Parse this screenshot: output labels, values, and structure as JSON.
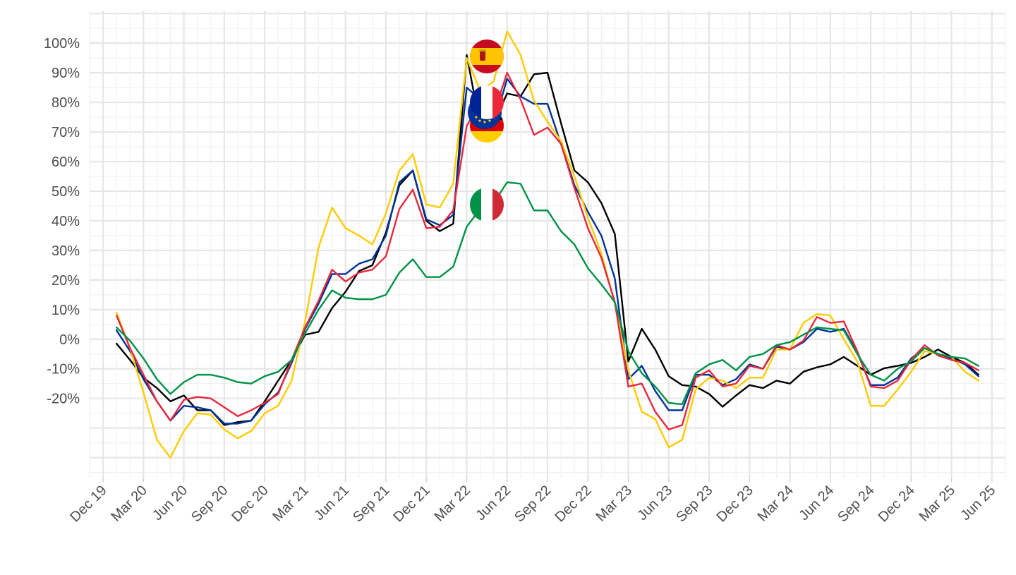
{
  "chart_data": {
    "type": "line",
    "title": "",
    "xlabel": "",
    "ylabel": "",
    "y_tick_labels": [
      "-20%",
      "-10%",
      "0%",
      "10%",
      "20%",
      "30%",
      "40%",
      "50%",
      "60%",
      "70%",
      "80%",
      "90%",
      "100%"
    ],
    "y_ticks": [
      -20,
      -10,
      0,
      10,
      20,
      30,
      40,
      50,
      60,
      70,
      80,
      90,
      100
    ],
    "x_tick_labels": [
      "Dec 19",
      "Mar 20",
      "Jun 20",
      "Sep 20",
      "Dec 20",
      "Mar 21",
      "Jun 21",
      "Sep 21",
      "Dec 21",
      "Mar 22",
      "Jun 22",
      "Sep 22",
      "Dec 22",
      "Mar 23",
      "Jun 23",
      "Sep 23",
      "Dec 23",
      "Mar 24",
      "Jun 24",
      "Sep 24",
      "Dec 24",
      "Mar 25",
      "Jun 25"
    ],
    "x_ticks": [
      "2019-12",
      "2020-03",
      "2020-06",
      "2020-09",
      "2020-12",
      "2021-03",
      "2021-06",
      "2021-09",
      "2021-12",
      "2022-03",
      "2022-06",
      "2022-09",
      "2022-12",
      "2023-03",
      "2023-06",
      "2023-09",
      "2023-12",
      "2024-03",
      "2024-06",
      "2024-09",
      "2024-12",
      "2025-03",
      "2025-06"
    ],
    "x_range": [
      "2019-11",
      "2025-07"
    ],
    "y_range": [
      -47,
      111
    ],
    "grid": true,
    "legend": "flag icons at line ends",
    "series": [
      {
        "color": "#000000",
        "flag": "eu-flag-icon",
        "x": [
          "2020-01",
          "2020-02",
          "2020-03",
          "2020-04",
          "2020-05",
          "2020-06",
          "2020-07",
          "2020-08",
          "2020-09",
          "2020-10",
          "2020-11",
          "2020-12",
          "2021-01",
          "2021-02",
          "2021-03",
          "2021-04",
          "2021-05",
          "2021-06",
          "2021-07",
          "2021-08",
          "2021-09",
          "2021-10",
          "2021-11",
          "2021-12",
          "2022-01",
          "2022-02",
          "2022-03",
          "2022-04",
          "2022-05",
          "2022-06",
          "2022-07",
          "2022-08",
          "2022-09",
          "2022-10",
          "2022-11",
          "2022-12",
          "2023-01",
          "2023-02",
          "2023-03",
          "2023-04",
          "2023-05",
          "2023-06",
          "2023-07",
          "2023-08",
          "2023-09",
          "2023-10",
          "2023-11",
          "2023-12",
          "2024-01",
          "2024-02",
          "2024-03",
          "2024-04",
          "2024-05",
          "2024-06",
          "2024-07",
          "2024-08",
          "2024-09",
          "2024-10",
          "2024-11",
          "2024-12",
          "2025-01",
          "2025-02",
          "2025-03",
          "2025-04",
          "2025-05"
        ],
        "y": [
          -1.5,
          -7,
          -13,
          -16.5,
          -21,
          -19,
          -24,
          -24,
          -29,
          -28,
          -27.5,
          -21,
          -14,
          -7,
          1.5,
          2.5,
          10.5,
          16,
          23,
          25,
          36,
          52,
          57,
          40,
          36.5,
          39,
          96,
          72,
          73,
          83,
          82,
          89.5,
          90,
          73,
          57,
          53,
          46,
          35.5,
          -7.5,
          3.5,
          -3.5,
          -12.5,
          -15.5,
          -16,
          -18.5,
          -22.8,
          -19,
          -15.5,
          -16.5,
          -14,
          -15,
          -11,
          -9.5,
          -8.5,
          -6,
          -9,
          -12,
          -9.8,
          -9,
          -8,
          -6,
          -3.5,
          -6,
          -8,
          -12
        ]
      },
      {
        "color": "#003399",
        "flag": "france-flag-icon",
        "x": [
          "2020-01",
          "2020-02",
          "2020-03",
          "2020-04",
          "2020-05",
          "2020-06",
          "2020-07",
          "2020-08",
          "2020-09",
          "2020-10",
          "2020-11",
          "2020-12",
          "2021-01",
          "2021-02",
          "2021-03",
          "2021-04",
          "2021-05",
          "2021-06",
          "2021-07",
          "2021-08",
          "2021-09",
          "2021-10",
          "2021-11",
          "2021-12",
          "2022-01",
          "2022-02",
          "2022-03",
          "2022-04",
          "2022-05",
          "2022-06",
          "2022-07",
          "2022-08",
          "2022-09",
          "2022-10",
          "2022-11",
          "2022-12",
          "2023-01",
          "2023-02",
          "2023-03",
          "2023-04",
          "2023-05",
          "2023-06",
          "2023-07",
          "2023-08",
          "2023-09",
          "2023-10",
          "2023-11",
          "2023-12",
          "2024-01",
          "2024-02",
          "2024-03",
          "2024-04",
          "2024-05",
          "2024-06",
          "2024-07",
          "2024-08",
          "2024-09",
          "2024-10",
          "2024-11",
          "2024-12",
          "2025-01",
          "2025-02",
          "2025-03",
          "2025-04",
          "2025-05"
        ],
        "y": [
          3,
          -4,
          -13.5,
          -21,
          -27.5,
          -22.5,
          -23,
          -24,
          -28.5,
          -28.5,
          -27.5,
          -22,
          -18,
          -8,
          3.5,
          12,
          22,
          22,
          25.5,
          27,
          35,
          53,
          57,
          40.5,
          38.5,
          42,
          85,
          81,
          72,
          88,
          82,
          79.5,
          79.5,
          66,
          52,
          43,
          35,
          20.5,
          -13.5,
          -9,
          -17.5,
          -24,
          -24,
          -12,
          -12,
          -15.5,
          -13.5,
          -8.5,
          -10,
          -2.5,
          -3.5,
          -1,
          3.5,
          2.5,
          3.5,
          -4.5,
          -15.5,
          -15.5,
          -13,
          -6.5,
          -3,
          -5,
          -6.5,
          -8.5,
          -12.5
        ]
      },
      {
        "color": "#ffcc00",
        "flag": "spain-flag-icon",
        "x": [
          "2020-01",
          "2020-02",
          "2020-03",
          "2020-04",
          "2020-05",
          "2020-06",
          "2020-07",
          "2020-08",
          "2020-09",
          "2020-10",
          "2020-11",
          "2020-12",
          "2021-01",
          "2021-02",
          "2021-03",
          "2021-04",
          "2021-05",
          "2021-06",
          "2021-07",
          "2021-08",
          "2021-09",
          "2021-10",
          "2021-11",
          "2021-12",
          "2022-01",
          "2022-02",
          "2022-03",
          "2022-04",
          "2022-05",
          "2022-06",
          "2022-07",
          "2022-08",
          "2022-09",
          "2022-10",
          "2022-11",
          "2022-12",
          "2023-01",
          "2023-02",
          "2023-03",
          "2023-04",
          "2023-05",
          "2023-06",
          "2023-07",
          "2023-08",
          "2023-09",
          "2023-10",
          "2023-11",
          "2023-12",
          "2024-01",
          "2024-02",
          "2024-03",
          "2024-04",
          "2024-05",
          "2024-06",
          "2024-07",
          "2024-08",
          "2024-09",
          "2024-10",
          "2024-11",
          "2024-12",
          "2025-01",
          "2025-02",
          "2025-03",
          "2025-04",
          "2025-05"
        ],
        "y": [
          9,
          -3,
          -18,
          -34,
          -40,
          -31,
          -25,
          -25.5,
          -30.5,
          -33.5,
          -31,
          -25,
          -22.5,
          -14,
          6,
          31,
          44.5,
          37.5,
          35,
          32,
          42.5,
          57,
          62.5,
          45.5,
          44.5,
          52.5,
          95,
          84,
          87,
          104,
          96,
          80.5,
          73.5,
          67,
          55,
          41,
          29,
          12,
          -10.5,
          -24.5,
          -27,
          -36.5,
          -34,
          -17,
          -13,
          -14,
          -16.5,
          -13,
          -13,
          -3.5,
          -3.5,
          5.5,
          8.5,
          8,
          0,
          -7.5,
          -22.5,
          -22.5,
          -17,
          -11,
          -4,
          -5,
          -6,
          -11,
          -14
        ]
      },
      {
        "color": "#e6283c",
        "flag": "germany-flag-icon",
        "x": [
          "2020-01",
          "2020-02",
          "2020-03",
          "2020-04",
          "2020-05",
          "2020-06",
          "2020-07",
          "2020-08",
          "2020-09",
          "2020-10",
          "2020-11",
          "2020-12",
          "2021-01",
          "2021-02",
          "2021-03",
          "2021-04",
          "2021-05",
          "2021-06",
          "2021-07",
          "2021-08",
          "2021-09",
          "2021-10",
          "2021-11",
          "2021-12",
          "2022-01",
          "2022-02",
          "2022-03",
          "2022-04",
          "2022-05",
          "2022-06",
          "2022-07",
          "2022-08",
          "2022-09",
          "2022-10",
          "2022-11",
          "2022-12",
          "2023-01",
          "2023-02",
          "2023-03",
          "2023-04",
          "2023-05",
          "2023-06",
          "2023-07",
          "2023-08",
          "2023-09",
          "2023-10",
          "2023-11",
          "2023-12",
          "2024-01",
          "2024-02",
          "2024-03",
          "2024-04",
          "2024-05",
          "2024-06",
          "2024-07",
          "2024-08",
          "2024-09",
          "2024-10",
          "2024-11",
          "2024-12",
          "2025-01",
          "2025-02",
          "2025-03",
          "2025-04",
          "2025-05"
        ],
        "y": [
          8,
          -3,
          -12,
          -21,
          -27.5,
          -20.5,
          -19.5,
          -20,
          -23,
          -26,
          -24,
          -21.5,
          -18.5,
          -7,
          4,
          13,
          23.5,
          19.5,
          22.5,
          23.5,
          28,
          44,
          50.5,
          37.5,
          38,
          43.5,
          72,
          80,
          76,
          90,
          81,
          69,
          71.5,
          66,
          51,
          37.5,
          27.5,
          12.5,
          -16,
          -15,
          -24.5,
          -30.5,
          -29,
          -13,
          -10.5,
          -16,
          -15,
          -9,
          -10,
          -2,
          -3.5,
          -0.5,
          7.5,
          5.5,
          6,
          -4,
          -16,
          -16.5,
          -14,
          -7,
          -2,
          -5.5,
          -7,
          -8,
          -10.5
        ]
      },
      {
        "color": "#009246",
        "flag": "italy-flag-icon",
        "x": [
          "2020-01",
          "2020-02",
          "2020-03",
          "2020-04",
          "2020-05",
          "2020-06",
          "2020-07",
          "2020-08",
          "2020-09",
          "2020-10",
          "2020-11",
          "2020-12",
          "2021-01",
          "2021-02",
          "2021-03",
          "2021-04",
          "2021-05",
          "2021-06",
          "2021-07",
          "2021-08",
          "2021-09",
          "2021-10",
          "2021-11",
          "2021-12",
          "2022-01",
          "2022-02",
          "2022-03",
          "2022-04",
          "2022-05",
          "2022-06",
          "2022-07",
          "2022-08",
          "2022-09",
          "2022-10",
          "2022-11",
          "2022-12",
          "2023-01",
          "2023-02",
          "2023-03",
          "2023-04",
          "2023-05",
          "2023-06",
          "2023-07",
          "2023-08",
          "2023-09",
          "2023-10",
          "2023-11",
          "2023-12",
          "2024-01",
          "2024-02",
          "2024-03",
          "2024-04",
          "2024-05",
          "2024-06",
          "2024-07",
          "2024-08",
          "2024-09",
          "2024-10",
          "2024-11",
          "2024-12",
          "2025-01",
          "2025-02",
          "2025-03",
          "2025-04",
          "2025-05"
        ],
        "y": [
          4,
          -0.5,
          -6.5,
          -13.5,
          -18.5,
          -14.5,
          -12,
          -12,
          -13,
          -14.5,
          -15,
          -12.5,
          -11,
          -7,
          2,
          10,
          16.5,
          14,
          13.5,
          13.5,
          15,
          22.5,
          27,
          21,
          21,
          24.5,
          38,
          44,
          46,
          53,
          52.5,
          43.5,
          43.5,
          36.5,
          32,
          24,
          18.5,
          12.5,
          -4,
          -11.5,
          -16,
          -21.5,
          -22,
          -11.5,
          -8.5,
          -7,
          -10.5,
          -6,
          -5,
          -2,
          -1,
          1.5,
          4,
          3.5,
          3,
          -5,
          -12,
          -14,
          -10,
          -7.5,
          -3,
          -5,
          -6,
          -6.5,
          -9
        ]
      }
    ]
  }
}
